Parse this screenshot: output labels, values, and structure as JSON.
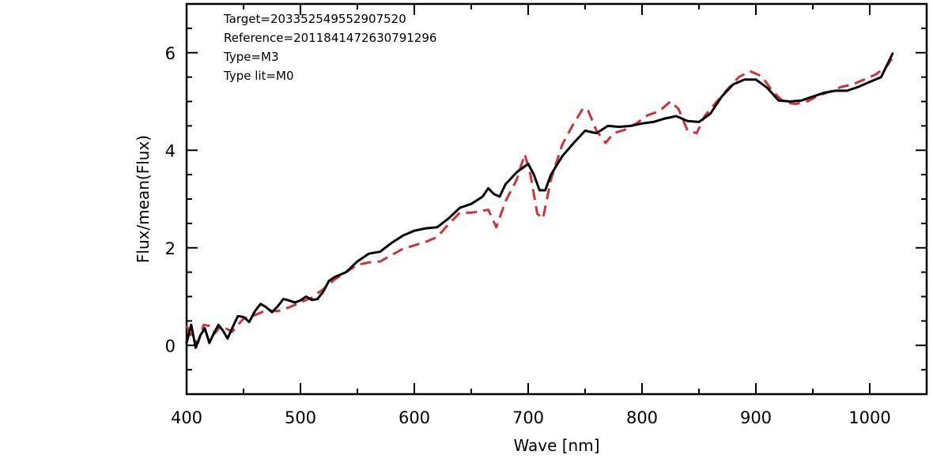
{
  "chart_data": {
    "type": "line",
    "xlabel": "Wave [nm]",
    "ylabel": "Flux/mean(Flux)",
    "xlim": [
      400,
      1050
    ],
    "ylim": [
      -1,
      7
    ],
    "x_ticks": [
      "400",
      "500",
      "600",
      "700",
      "800",
      "900",
      "1000"
    ],
    "y_ticks": [
      "0",
      "2",
      "4",
      "6"
    ],
    "grid": false,
    "annotations": [
      "Target=203352549552907520",
      "Reference=2011841472630791296",
      "Type=M3",
      "Type lit=M0"
    ],
    "series": [
      {
        "style": "solid",
        "color": "#000000",
        "points": [
          [
            400,
            0.05
          ],
          [
            404,
            0.42
          ],
          [
            408,
            -0.05
          ],
          [
            412,
            0.2
          ],
          [
            416,
            0.35
          ],
          [
            420,
            0.05
          ],
          [
            424,
            0.25
          ],
          [
            428,
            0.42
          ],
          [
            432,
            0.3
          ],
          [
            436,
            0.14
          ],
          [
            440,
            0.35
          ],
          [
            445,
            0.6
          ],
          [
            450,
            0.58
          ],
          [
            455,
            0.48
          ],
          [
            460,
            0.7
          ],
          [
            465,
            0.85
          ],
          [
            470,
            0.78
          ],
          [
            475,
            0.68
          ],
          [
            480,
            0.8
          ],
          [
            485,
            0.95
          ],
          [
            490,
            0.92
          ],
          [
            495,
            0.88
          ],
          [
            500,
            0.92
          ],
          [
            505,
            1.0
          ],
          [
            510,
            0.93
          ],
          [
            515,
            0.95
          ],
          [
            520,
            1.1
          ],
          [
            525,
            1.32
          ],
          [
            530,
            1.4
          ],
          [
            540,
            1.5
          ],
          [
            550,
            1.72
          ],
          [
            560,
            1.88
          ],
          [
            570,
            1.92
          ],
          [
            580,
            2.1
          ],
          [
            590,
            2.25
          ],
          [
            600,
            2.35
          ],
          [
            610,
            2.4
          ],
          [
            620,
            2.42
          ],
          [
            630,
            2.6
          ],
          [
            640,
            2.82
          ],
          [
            650,
            2.9
          ],
          [
            660,
            3.05
          ],
          [
            665,
            3.22
          ],
          [
            670,
            3.1
          ],
          [
            675,
            3.05
          ],
          [
            680,
            3.3
          ],
          [
            690,
            3.55
          ],
          [
            700,
            3.72
          ],
          [
            705,
            3.5
          ],
          [
            710,
            3.18
          ],
          [
            715,
            3.18
          ],
          [
            720,
            3.5
          ],
          [
            730,
            3.88
          ],
          [
            740,
            4.15
          ],
          [
            750,
            4.4
          ],
          [
            760,
            4.35
          ],
          [
            770,
            4.5
          ],
          [
            780,
            4.48
          ],
          [
            790,
            4.5
          ],
          [
            800,
            4.55
          ],
          [
            810,
            4.58
          ],
          [
            820,
            4.65
          ],
          [
            830,
            4.7
          ],
          [
            840,
            4.6
          ],
          [
            850,
            4.58
          ],
          [
            860,
            4.75
          ],
          [
            870,
            5.1
          ],
          [
            880,
            5.35
          ],
          [
            890,
            5.45
          ],
          [
            900,
            5.45
          ],
          [
            910,
            5.28
          ],
          [
            920,
            5.02
          ],
          [
            930,
            5.0
          ],
          [
            940,
            5.02
          ],
          [
            950,
            5.1
          ],
          [
            960,
            5.18
          ],
          [
            970,
            5.22
          ],
          [
            980,
            5.22
          ],
          [
            990,
            5.3
          ],
          [
            1000,
            5.4
          ],
          [
            1010,
            5.5
          ],
          [
            1020,
            5.98
          ]
        ]
      },
      {
        "style": "dashed",
        "color": "#d13238",
        "points": [
          [
            400,
            0.4
          ],
          [
            405,
            0.15
          ],
          [
            410,
            0.05
          ],
          [
            415,
            0.42
          ],
          [
            420,
            0.4
          ],
          [
            425,
            0.25
          ],
          [
            430,
            0.4
          ],
          [
            440,
            0.28
          ],
          [
            450,
            0.55
          ],
          [
            460,
            0.62
          ],
          [
            470,
            0.72
          ],
          [
            480,
            0.7
          ],
          [
            490,
            0.78
          ],
          [
            500,
            0.88
          ],
          [
            510,
            0.98
          ],
          [
            520,
            1.15
          ],
          [
            530,
            1.35
          ],
          [
            540,
            1.5
          ],
          [
            550,
            1.65
          ],
          [
            560,
            1.7
          ],
          [
            570,
            1.72
          ],
          [
            580,
            1.85
          ],
          [
            590,
            1.98
          ],
          [
            600,
            2.05
          ],
          [
            610,
            2.12
          ],
          [
            620,
            2.22
          ],
          [
            630,
            2.48
          ],
          [
            640,
            2.72
          ],
          [
            650,
            2.72
          ],
          [
            660,
            2.76
          ],
          [
            665,
            2.78
          ],
          [
            672,
            2.42
          ],
          [
            680,
            2.95
          ],
          [
            690,
            3.4
          ],
          [
            697,
            3.92
          ],
          [
            702,
            3.5
          ],
          [
            708,
            2.7
          ],
          [
            713,
            2.6
          ],
          [
            720,
            3.4
          ],
          [
            730,
            4.12
          ],
          [
            740,
            4.55
          ],
          [
            748,
            4.85
          ],
          [
            752,
            4.85
          ],
          [
            760,
            4.4
          ],
          [
            768,
            4.15
          ],
          [
            775,
            4.35
          ],
          [
            785,
            4.42
          ],
          [
            795,
            4.55
          ],
          [
            805,
            4.72
          ],
          [
            815,
            4.8
          ],
          [
            825,
            5.0
          ],
          [
            832,
            4.85
          ],
          [
            840,
            4.4
          ],
          [
            848,
            4.35
          ],
          [
            855,
            4.7
          ],
          [
            865,
            4.98
          ],
          [
            875,
            5.25
          ],
          [
            885,
            5.5
          ],
          [
            895,
            5.62
          ],
          [
            905,
            5.52
          ],
          [
            915,
            5.2
          ],
          [
            925,
            4.98
          ],
          [
            935,
            4.95
          ],
          [
            945,
            5.0
          ],
          [
            955,
            5.12
          ],
          [
            965,
            5.2
          ],
          [
            975,
            5.3
          ],
          [
            985,
            5.35
          ],
          [
            995,
            5.45
          ],
          [
            1005,
            5.55
          ],
          [
            1015,
            5.72
          ],
          [
            1020,
            5.9
          ]
        ]
      }
    ]
  }
}
